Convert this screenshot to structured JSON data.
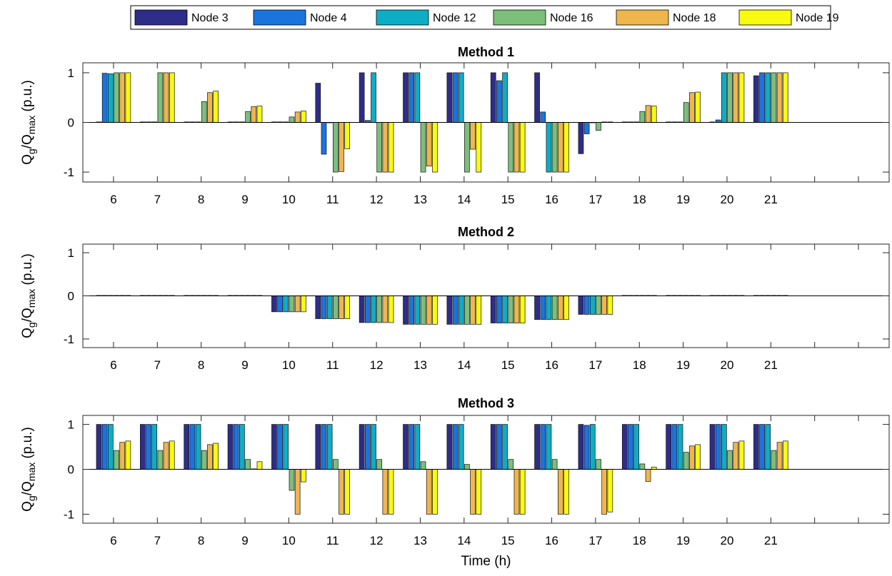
{
  "legend": {
    "placement": "top-center",
    "entries": [
      {
        "name": "Node 3",
        "color": "#2e2d89"
      },
      {
        "name": "Node 4",
        "color": "#1b74de"
      },
      {
        "name": "Node 12",
        "color": "#0eadc6"
      },
      {
        "name": "Node 16",
        "color": "#7cbf7b"
      },
      {
        "name": "Node 18",
        "color": "#efb64e"
      },
      {
        "name": "Node 19",
        "color": "#f8fa0f"
      }
    ]
  },
  "chart_data": [
    {
      "type": "bar",
      "title": "Method 1",
      "ylabel_main": "Q",
      "ylabel_sub1": "g",
      "ylabel_mid": "/Q",
      "ylabel_sub2": "max",
      "ylabel_unit": " (p.u.)",
      "xlabel": "",
      "ylim": [
        -1.2,
        1.2
      ],
      "yticks": [
        "1",
        "0",
        "-1"
      ],
      "yticks_values": [
        1,
        0,
        -1
      ],
      "xlim": [
        5.3,
        23.7
      ],
      "categories": [
        "6",
        "7",
        "8",
        "9",
        "10",
        "11",
        "12",
        "13",
        "14",
        "15",
        "16",
        "17",
        "18",
        "19",
        "20",
        "21"
      ],
      "series": [
        {
          "name": "Node 3",
          "values": [
            0.01,
            0.01,
            0.01,
            0.01,
            0.01,
            0.79,
            1.0,
            1.0,
            1.0,
            1.0,
            1.0,
            -0.63,
            0.01,
            0.01,
            0.01,
            0.94
          ]
        },
        {
          "name": "Node 4",
          "values": [
            0.99,
            0.01,
            0.01,
            0.01,
            0.01,
            -0.64,
            0.04,
            1.0,
            1.0,
            0.84,
            0.21,
            -0.23,
            0.01,
            0.01,
            0.05,
            1.0
          ]
        },
        {
          "name": "Node 12",
          "values": [
            0.98,
            0.01,
            0.01,
            0.01,
            0.01,
            0.0,
            1.0,
            1.0,
            1.0,
            1.0,
            -1.0,
            0.0,
            0.01,
            0.01,
            1.0,
            1.0
          ]
        },
        {
          "name": "Node 16",
          "values": [
            1.0,
            1.0,
            0.42,
            0.22,
            0.11,
            -1.0,
            -1.0,
            -1.0,
            -1.0,
            -1.0,
            -1.0,
            -0.16,
            0.22,
            0.4,
            1.0,
            1.0
          ]
        },
        {
          "name": "Node 18",
          "values": [
            1.0,
            1.0,
            0.6,
            0.32,
            0.21,
            -0.99,
            -1.0,
            -0.88,
            -0.54,
            -1.0,
            -1.0,
            0.01,
            0.34,
            0.6,
            1.0,
            1.0
          ]
        },
        {
          "name": "Node 19",
          "values": [
            1.0,
            1.0,
            0.63,
            0.33,
            0.23,
            -0.53,
            -1.0,
            -1.0,
            -1.0,
            -1.0,
            -1.0,
            0.01,
            0.33,
            0.61,
            1.0,
            1.0
          ]
        }
      ]
    },
    {
      "type": "bar",
      "title": "Method 2",
      "ylabel_main": "Q",
      "ylabel_sub1": "g",
      "ylabel_mid": "/Q",
      "ylabel_sub2": "max",
      "ylabel_unit": " (p.u.)",
      "xlabel": "",
      "ylim": [
        -1.2,
        1.2
      ],
      "yticks": [
        "1",
        "0",
        "-1"
      ],
      "yticks_values": [
        1,
        0,
        -1
      ],
      "xlim": [
        5.3,
        23.7
      ],
      "categories": [
        "6",
        "7",
        "8",
        "9",
        "10",
        "11",
        "12",
        "13",
        "14",
        "15",
        "16",
        "17",
        "18",
        "19",
        "20",
        "21"
      ],
      "series": [
        {
          "name": "Node 3",
          "values": [
            0.01,
            0.01,
            0.01,
            0.01,
            -0.37,
            -0.53,
            -0.62,
            -0.66,
            -0.66,
            -0.63,
            -0.55,
            -0.43,
            0.01,
            0.01,
            0.01,
            0.01
          ]
        },
        {
          "name": "Node 4",
          "values": [
            0.01,
            0.01,
            0.01,
            0.01,
            -0.37,
            -0.53,
            -0.62,
            -0.66,
            -0.66,
            -0.63,
            -0.55,
            -0.43,
            0.01,
            0.01,
            0.01,
            0.01
          ]
        },
        {
          "name": "Node 12",
          "values": [
            0.01,
            0.01,
            0.01,
            0.01,
            -0.37,
            -0.53,
            -0.62,
            -0.66,
            -0.66,
            -0.63,
            -0.55,
            -0.43,
            0.01,
            0.01,
            0.01,
            0.01
          ]
        },
        {
          "name": "Node 16",
          "values": [
            0.01,
            0.01,
            0.01,
            0.01,
            -0.37,
            -0.53,
            -0.62,
            -0.66,
            -0.66,
            -0.63,
            -0.55,
            -0.43,
            0.01,
            0.01,
            0.01,
            0.01
          ]
        },
        {
          "name": "Node 18",
          "values": [
            0.01,
            0.01,
            0.01,
            0.01,
            -0.37,
            -0.53,
            -0.62,
            -0.66,
            -0.66,
            -0.63,
            -0.55,
            -0.43,
            0.01,
            0.01,
            0.01,
            0.01
          ]
        },
        {
          "name": "Node 19",
          "values": [
            0.01,
            0.01,
            0.01,
            0.01,
            -0.37,
            -0.53,
            -0.62,
            -0.66,
            -0.66,
            -0.63,
            -0.55,
            -0.43,
            0.01,
            0.01,
            0.01,
            0.01
          ]
        }
      ]
    },
    {
      "type": "bar",
      "title": "Method 3",
      "ylabel_main": "Q",
      "ylabel_sub1": "g",
      "ylabel_mid": "/Q",
      "ylabel_sub2": "max",
      "ylabel_unit": " (p.u.)",
      "xlabel": "Time (h)",
      "ylim": [
        -1.2,
        1.2
      ],
      "yticks": [
        "1",
        "0",
        "-1"
      ],
      "yticks_values": [
        1,
        0,
        -1
      ],
      "xlim": [
        5.3,
        23.7
      ],
      "categories": [
        "6",
        "7",
        "8",
        "9",
        "10",
        "11",
        "12",
        "13",
        "14",
        "15",
        "16",
        "17",
        "18",
        "19",
        "20",
        "21"
      ],
      "series": [
        {
          "name": "Node 3",
          "values": [
            1.0,
            1.0,
            1.0,
            1.0,
            1.0,
            1.0,
            1.0,
            1.0,
            1.0,
            1.0,
            1.0,
            1.0,
            1.0,
            1.0,
            1.0,
            1.0
          ]
        },
        {
          "name": "Node 4",
          "values": [
            1.0,
            1.0,
            1.0,
            1.0,
            1.0,
            1.0,
            1.0,
            1.0,
            1.0,
            1.0,
            1.0,
            0.98,
            1.0,
            1.0,
            1.0,
            1.0
          ]
        },
        {
          "name": "Node 12",
          "values": [
            1.0,
            1.0,
            1.0,
            1.0,
            1.0,
            1.0,
            1.0,
            1.0,
            1.0,
            1.0,
            1.0,
            1.0,
            1.0,
            1.0,
            1.0,
            1.0
          ]
        },
        {
          "name": "Node 16",
          "values": [
            0.42,
            0.42,
            0.42,
            0.22,
            -0.47,
            0.22,
            0.22,
            0.17,
            0.11,
            0.22,
            0.22,
            0.22,
            0.12,
            0.38,
            0.42,
            0.42
          ]
        },
        {
          "name": "Node 18",
          "values": [
            0.6,
            0.6,
            0.55,
            0.01,
            -1.0,
            -1.0,
            -1.0,
            -1.0,
            -1.0,
            -1.0,
            -1.0,
            -1.0,
            -0.27,
            0.52,
            0.6,
            0.6
          ]
        },
        {
          "name": "Node 19",
          "values": [
            0.63,
            0.63,
            0.58,
            0.17,
            -0.28,
            -1.0,
            -1.0,
            -1.0,
            -1.0,
            -1.0,
            -1.0,
            -0.95,
            0.05,
            0.55,
            0.63,
            0.63
          ]
        }
      ]
    }
  ]
}
